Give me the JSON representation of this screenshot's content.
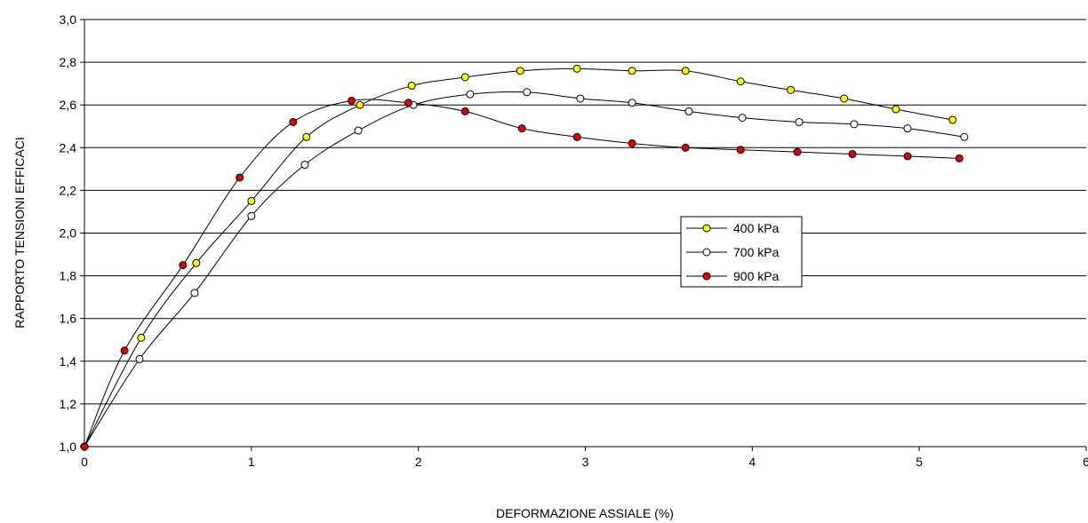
{
  "chart_data": {
    "type": "scatter",
    "title": "",
    "xlabel": "DEFORMAZIONE ASSIALE (%)",
    "ylabel": "RAPPORTO TENSIONI EFFICACI",
    "xlim": [
      0,
      6
    ],
    "ylim": [
      1.0,
      3.0
    ],
    "x_ticks": [
      0,
      1,
      2,
      3,
      4,
      5,
      6
    ],
    "x_tick_labels": [
      "0",
      "1",
      "2",
      "3",
      "4",
      "5",
      "6"
    ],
    "y_ticks": [
      1.0,
      1.2,
      1.4,
      1.6,
      1.8,
      2.0,
      2.2,
      2.4,
      2.6,
      2.8,
      3.0
    ],
    "y_tick_labels": [
      "1,0",
      "1,2",
      "1,4",
      "1,6",
      "1,8",
      "2,0",
      "2,2",
      "2,4",
      "2,6",
      "2,8",
      "3,0"
    ],
    "grid": "horizontal",
    "legend_position": "center-right",
    "series": [
      {
        "name": "400 kPa",
        "color": "#ffff00",
        "x": [
          0,
          0.34,
          0.67,
          1.0,
          1.33,
          1.65,
          1.96,
          2.28,
          2.61,
          2.95,
          3.28,
          3.6,
          3.93,
          4.23,
          4.55,
          4.86,
          5.2
        ],
        "y": [
          1.0,
          1.51,
          1.86,
          2.15,
          2.45,
          2.6,
          2.69,
          2.73,
          2.76,
          2.77,
          2.76,
          2.76,
          2.71,
          2.67,
          2.63,
          2.58,
          2.53
        ]
      },
      {
        "name": "700 kPa",
        "color": "#ffffff",
        "x": [
          0,
          0.33,
          0.66,
          1.0,
          1.32,
          1.64,
          1.97,
          2.31,
          2.65,
          2.97,
          3.28,
          3.62,
          3.94,
          4.28,
          4.61,
          4.93,
          5.27
        ],
        "y": [
          1.0,
          1.41,
          1.72,
          2.08,
          2.32,
          2.48,
          2.6,
          2.65,
          2.66,
          2.63,
          2.61,
          2.57,
          2.54,
          2.52,
          2.51,
          2.49,
          2.45
        ]
      },
      {
        "name": "900 kPa",
        "color": "#e00000",
        "x": [
          0,
          0.24,
          0.59,
          0.93,
          1.25,
          1.6,
          1.94,
          2.28,
          2.62,
          2.95,
          3.28,
          3.6,
          3.93,
          4.27,
          4.6,
          4.93,
          5.24
        ],
        "y": [
          1.0,
          1.45,
          1.85,
          2.26,
          2.52,
          2.62,
          2.61,
          2.57,
          2.49,
          2.45,
          2.42,
          2.4,
          2.39,
          2.38,
          2.37,
          2.36,
          2.35
        ]
      }
    ]
  }
}
